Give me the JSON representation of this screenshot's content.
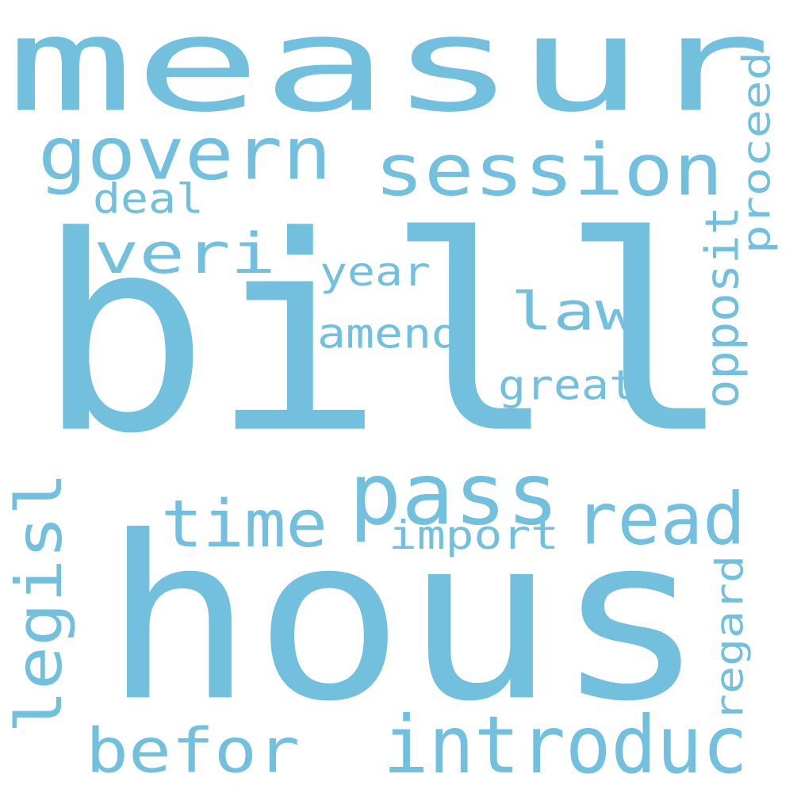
{
  "colors": {
    "word": "#73c0de",
    "background": "#ffffff"
  },
  "words": [
    {
      "text": "bill"
    },
    {
      "text": "hous"
    },
    {
      "text": "measur"
    },
    {
      "text": "session"
    },
    {
      "text": "govern"
    },
    {
      "text": "pass"
    },
    {
      "text": "veri"
    },
    {
      "text": "time"
    },
    {
      "text": "read"
    },
    {
      "text": "introduc"
    },
    {
      "text": "befor"
    },
    {
      "text": "law"
    },
    {
      "text": "legisl"
    },
    {
      "text": "amend"
    },
    {
      "text": "deal"
    },
    {
      "text": "year"
    },
    {
      "text": "great"
    },
    {
      "text": "import"
    },
    {
      "text": "opposit"
    },
    {
      "text": "proceed"
    },
    {
      "text": "regard"
    }
  ]
}
